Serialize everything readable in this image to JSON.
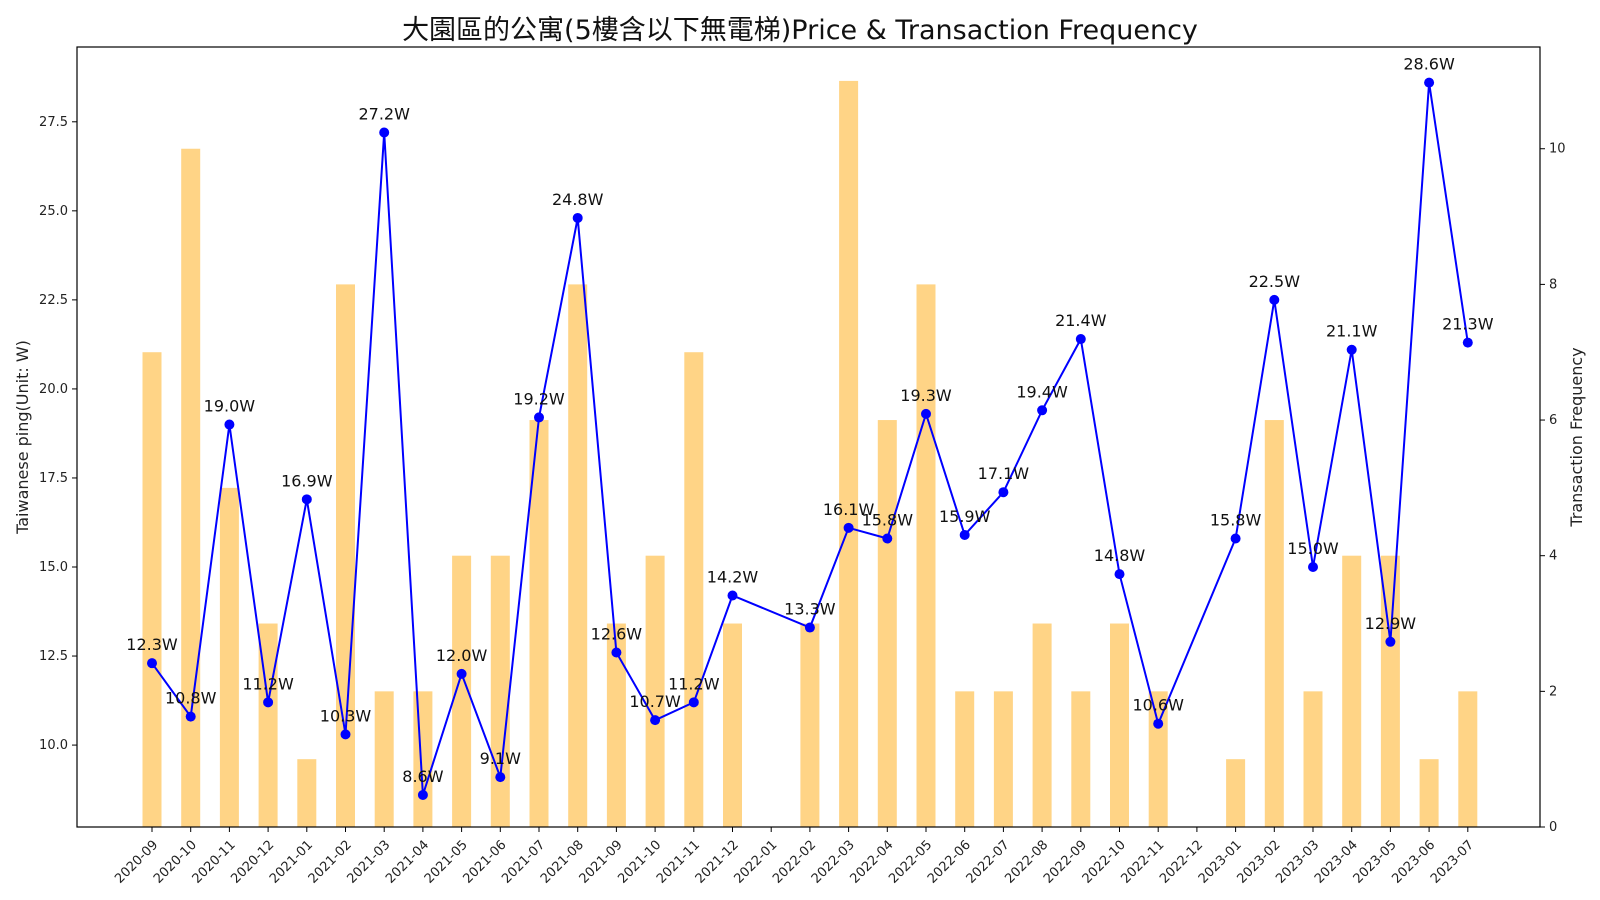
{
  "chart_data": {
    "type": "bar+line",
    "title": "大園區的公寓(5樓含以下無電梯)Price & Transaction Frequency",
    "ylabel_left": "Taiwanese ping(Unit: W)",
    "ylabel_right": "Transaction Frequency",
    "categories": [
      "2020-09",
      "2020-10",
      "2020-11",
      "2020-12",
      "2021-01",
      "2021-02",
      "2021-03",
      "2021-04",
      "2021-05",
      "2021-06",
      "2021-07",
      "2021-08",
      "2021-09",
      "2021-10",
      "2021-11",
      "2021-12",
      "2022-01",
      "2022-02",
      "2022-03",
      "2022-04",
      "2022-05",
      "2022-06",
      "2022-07",
      "2022-08",
      "2022-09",
      "2022-10",
      "2022-11",
      "2022-12",
      "2023-01",
      "2023-02",
      "2023-03",
      "2023-04",
      "2023-05",
      "2023-06",
      "2023-07"
    ],
    "left_axis": {
      "ylim": [
        7.7,
        29.6
      ],
      "ticks": [
        "10.0",
        "12.5",
        "15.0",
        "17.5",
        "20.0",
        "22.5",
        "25.0",
        "27.5"
      ]
    },
    "right_axis": {
      "ylim": [
        0,
        11.5
      ],
      "ticks": [
        "0",
        "2",
        "4",
        "6",
        "8",
        "10"
      ]
    },
    "series": [
      {
        "name": "Transaction Frequency",
        "type": "bar",
        "axis": "right",
        "color": "#ffd27f",
        "values": [
          7,
          10,
          5,
          3,
          1,
          8,
          2,
          2,
          4,
          4,
          6,
          8,
          3,
          4,
          7,
          3,
          0,
          3,
          11,
          6,
          8,
          2,
          2,
          3,
          2,
          3,
          2,
          0,
          1,
          6,
          2,
          4,
          4,
          1,
          2
        ]
      },
      {
        "name": "Price",
        "type": "line",
        "axis": "left",
        "color": "#0000ff",
        "values": [
          12.3,
          10.8,
          19.0,
          11.2,
          16.9,
          10.3,
          27.2,
          8.6,
          12.0,
          9.1,
          19.2,
          24.8,
          12.6,
          10.7,
          11.2,
          14.2,
          null,
          13.3,
          16.1,
          15.8,
          19.3,
          15.9,
          17.1,
          19.4,
          21.4,
          14.8,
          10.6,
          null,
          15.8,
          22.5,
          15.0,
          21.1,
          12.9,
          28.6,
          21.3
        ],
        "labels": [
          "12.3W",
          "10.8W",
          "19.0W",
          "11.2W",
          "16.9W",
          "10.3W",
          "27.2W",
          "8.6W",
          "12.0W",
          "9.1W",
          "19.2W",
          "24.8W",
          "12.6W",
          "10.7W",
          "11.2W",
          "14.2W",
          "",
          "13.3W",
          "16.1W",
          "15.8W",
          "19.3W",
          "15.9W",
          "17.1W",
          "19.4W",
          "21.4W",
          "14.8W",
          "10.6W",
          "",
          "15.8W",
          "22.5W",
          "15.0W",
          "21.1W",
          "12.9W",
          "28.6W",
          "21.3W"
        ]
      }
    ],
    "grid": false,
    "legend": "none"
  }
}
